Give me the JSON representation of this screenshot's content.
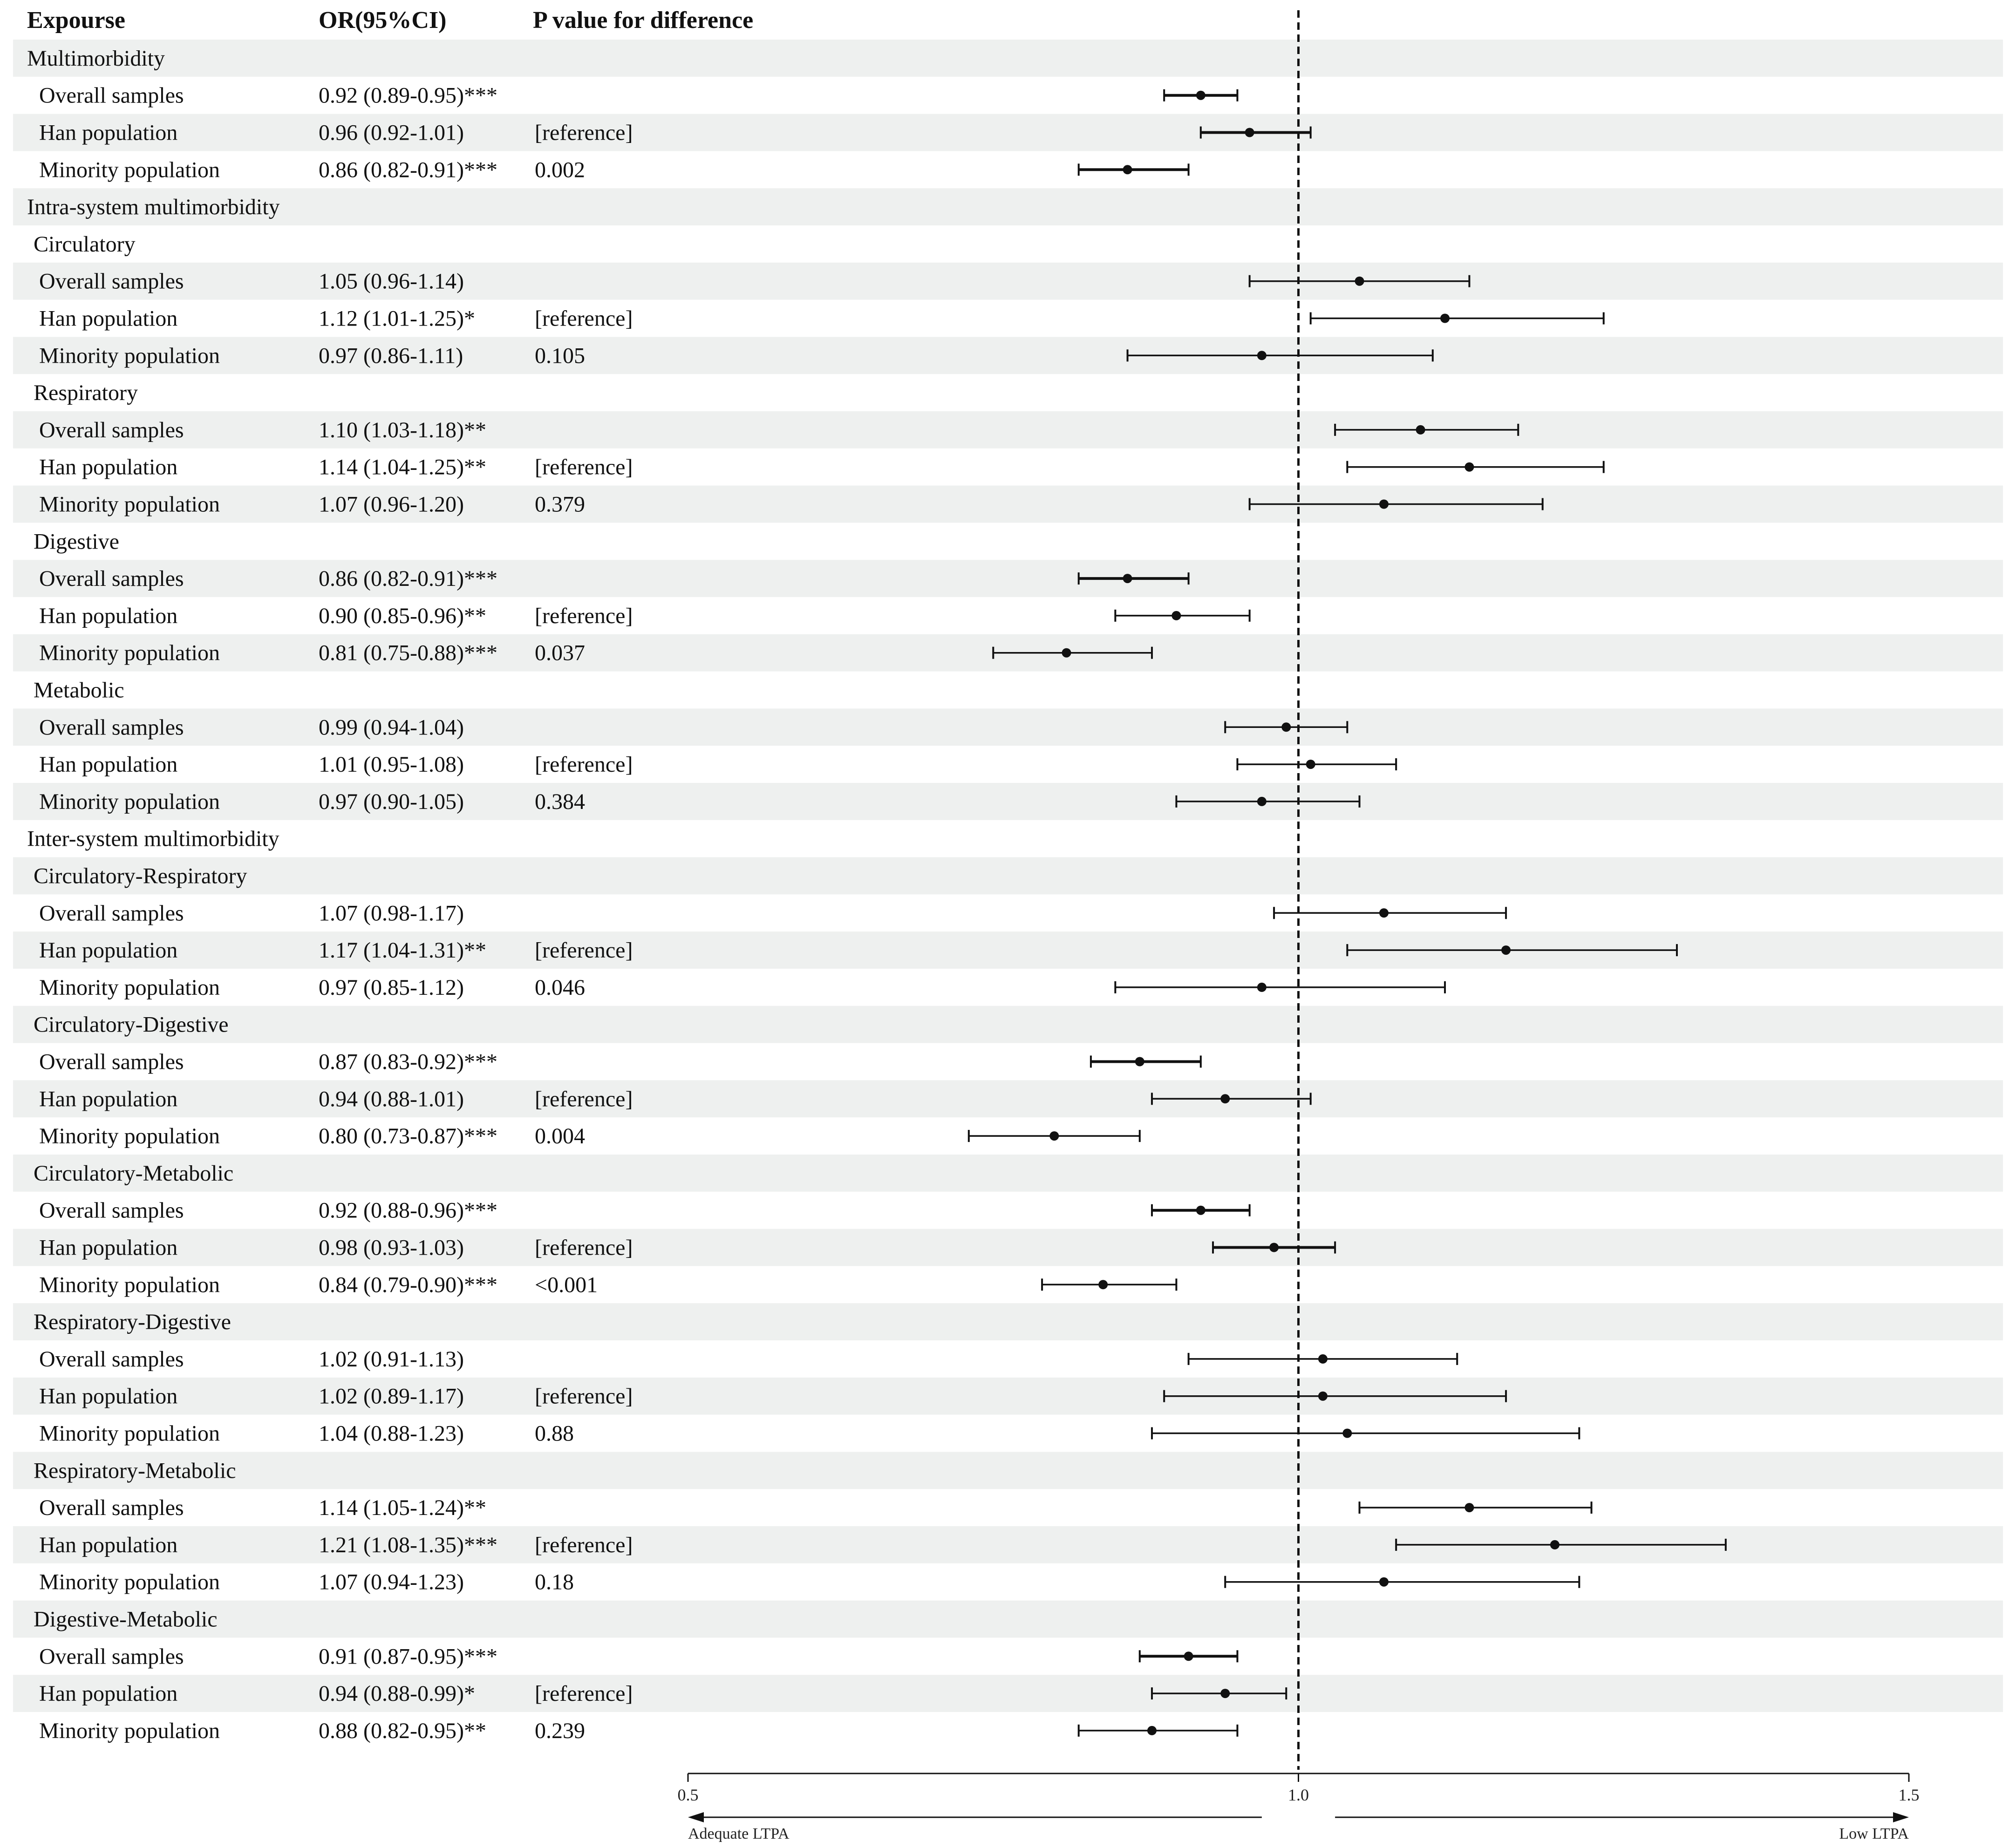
{
  "chart_data": {
    "type": "forest",
    "headers": {
      "exposure": "Expourse",
      "or": "OR(95%CI)",
      "p": "P value for difference"
    },
    "reference_line": 1.0,
    "xlim": [
      0.5,
      1.5
    ],
    "xticks": [
      "0.5",
      "1.0",
      "1.5"
    ],
    "direction_labels": {
      "left": "Adequate LTPA",
      "right": "Low LTPA"
    },
    "rows": [
      {
        "label": "Multimorbidity",
        "type": "section"
      },
      {
        "label": "Overall samples",
        "type": "data",
        "or_text": "0.92 (0.89-0.95)***",
        "p": "",
        "est": 0.92,
        "lo": 0.89,
        "hi": 0.95
      },
      {
        "label": "Han population",
        "type": "data",
        "or_text": "0.96 (0.92-1.01)",
        "p": "[reference]",
        "est": 0.96,
        "lo": 0.92,
        "hi": 1.01
      },
      {
        "label": "Minority population",
        "type": "data",
        "or_text": "0.86 (0.82-0.91)***",
        "p": "0.002",
        "est": 0.86,
        "lo": 0.82,
        "hi": 0.91
      },
      {
        "label": "Intra-system multimorbidity",
        "type": "section"
      },
      {
        "label": "Circulatory",
        "type": "subsection"
      },
      {
        "label": "Overall samples",
        "type": "data",
        "or_text": "1.05 (0.96-1.14)",
        "p": "",
        "est": 1.05,
        "lo": 0.96,
        "hi": 1.14
      },
      {
        "label": "Han population",
        "type": "data",
        "or_text": "1.12 (1.01-1.25)*",
        "p": "[reference]",
        "est": 1.12,
        "lo": 1.01,
        "hi": 1.25
      },
      {
        "label": "Minority population",
        "type": "data",
        "or_text": "0.97 (0.86-1.11)",
        "p": "0.105",
        "est": 0.97,
        "lo": 0.86,
        "hi": 1.11
      },
      {
        "label": "Respiratory",
        "type": "subsection"
      },
      {
        "label": "Overall samples",
        "type": "data",
        "or_text": "1.10 (1.03-1.18)**",
        "p": "",
        "est": 1.1,
        "lo": 1.03,
        "hi": 1.18
      },
      {
        "label": "Han population",
        "type": "data",
        "or_text": "1.14 (1.04-1.25)**",
        "p": "[reference]",
        "est": 1.14,
        "lo": 1.04,
        "hi": 1.25
      },
      {
        "label": "Minority population",
        "type": "data",
        "or_text": "1.07 (0.96-1.20)",
        "p": "0.379",
        "est": 1.07,
        "lo": 0.96,
        "hi": 1.2
      },
      {
        "label": "Digestive",
        "type": "subsection"
      },
      {
        "label": "Overall samples",
        "type": "data",
        "or_text": "0.86 (0.82-0.91)***",
        "p": "",
        "est": 0.86,
        "lo": 0.82,
        "hi": 0.91
      },
      {
        "label": "Han population",
        "type": "data",
        "or_text": "0.90 (0.85-0.96)**",
        "p": "[reference]",
        "est": 0.9,
        "lo": 0.85,
        "hi": 0.96
      },
      {
        "label": "Minority population",
        "type": "data",
        "or_text": "0.81 (0.75-0.88)***",
        "p": "0.037",
        "est": 0.81,
        "lo": 0.75,
        "hi": 0.88
      },
      {
        "label": "Metabolic",
        "type": "subsection"
      },
      {
        "label": "Overall samples",
        "type": "data",
        "or_text": "0.99 (0.94-1.04)",
        "p": "",
        "est": 0.99,
        "lo": 0.94,
        "hi": 1.04
      },
      {
        "label": "Han population",
        "type": "data",
        "or_text": "1.01 (0.95-1.08)",
        "p": "[reference]",
        "est": 1.01,
        "lo": 0.95,
        "hi": 1.08
      },
      {
        "label": "Minority population",
        "type": "data",
        "or_text": "0.97 (0.90-1.05)",
        "p": "0.384",
        "est": 0.97,
        "lo": 0.9,
        "hi": 1.05
      },
      {
        "label": "Inter-system multimorbidity",
        "type": "section"
      },
      {
        "label": "Circulatory-Respiratory",
        "type": "subsection"
      },
      {
        "label": "Overall samples",
        "type": "data",
        "or_text": "1.07 (0.98-1.17)",
        "p": "",
        "est": 1.07,
        "lo": 0.98,
        "hi": 1.17
      },
      {
        "label": "Han population",
        "type": "data",
        "or_text": "1.17 (1.04-1.31)**",
        "p": "[reference]",
        "est": 1.17,
        "lo": 1.04,
        "hi": 1.31
      },
      {
        "label": "Minority population",
        "type": "data",
        "or_text": "0.97 (0.85-1.12)",
        "p": "0.046",
        "est": 0.97,
        "lo": 0.85,
        "hi": 1.12
      },
      {
        "label": "Circulatory-Digestive",
        "type": "subsection"
      },
      {
        "label": "Overall samples",
        "type": "data",
        "or_text": "0.87 (0.83-0.92)***",
        "p": "",
        "est": 0.87,
        "lo": 0.83,
        "hi": 0.92
      },
      {
        "label": "Han population",
        "type": "data",
        "or_text": "0.94 (0.88-1.01)",
        "p": "[reference]",
        "est": 0.94,
        "lo": 0.88,
        "hi": 1.01
      },
      {
        "label": "Minority population",
        "type": "data",
        "or_text": "0.80 (0.73-0.87)***",
        "p": "0.004",
        "est": 0.8,
        "lo": 0.73,
        "hi": 0.87
      },
      {
        "label": "Circulatory-Metabolic",
        "type": "subsection"
      },
      {
        "label": "Overall samples",
        "type": "data",
        "or_text": "0.92 (0.88-0.96)***",
        "p": "",
        "est": 0.92,
        "lo": 0.88,
        "hi": 0.96
      },
      {
        "label": "Han population",
        "type": "data",
        "or_text": "0.98 (0.93-1.03)",
        "p": "[reference]",
        "est": 0.98,
        "lo": 0.93,
        "hi": 1.03
      },
      {
        "label": "Minority population",
        "type": "data",
        "or_text": "0.84 (0.79-0.90)***",
        "p": "<0.001",
        "est": 0.84,
        "lo": 0.79,
        "hi": 0.9
      },
      {
        "label": "Respiratory-Digestive",
        "type": "subsection"
      },
      {
        "label": "Overall samples",
        "type": "data",
        "or_text": "1.02 (0.91-1.13)",
        "p": "",
        "est": 1.02,
        "lo": 0.91,
        "hi": 1.13
      },
      {
        "label": "Han population",
        "type": "data",
        "or_text": "1.02 (0.89-1.17)",
        "p": "[reference]",
        "est": 1.02,
        "lo": 0.89,
        "hi": 1.17
      },
      {
        "label": "Minority population",
        "type": "data",
        "or_text": "1.04 (0.88-1.23)",
        "p": "0.88",
        "est": 1.04,
        "lo": 0.88,
        "hi": 1.23
      },
      {
        "label": "Respiratory-Metabolic",
        "type": "subsection"
      },
      {
        "label": "Overall samples",
        "type": "data",
        "or_text": "1.14 (1.05-1.24)**",
        "p": "",
        "est": 1.14,
        "lo": 1.05,
        "hi": 1.24
      },
      {
        "label": "Han population",
        "type": "data",
        "or_text": "1.21 (1.08-1.35)***",
        "p": "[reference]",
        "est": 1.21,
        "lo": 1.08,
        "hi": 1.35
      },
      {
        "label": "Minority population",
        "type": "data",
        "or_text": "1.07 (0.94-1.23)",
        "p": "0.18",
        "est": 1.07,
        "lo": 0.94,
        "hi": 1.23
      },
      {
        "label": "Digestive-Metabolic",
        "type": "subsection"
      },
      {
        "label": "Overall samples",
        "type": "data",
        "or_text": "0.91 (0.87-0.95)***",
        "p": "",
        "est": 0.91,
        "lo": 0.87,
        "hi": 0.95
      },
      {
        "label": "Han population",
        "type": "data",
        "or_text": "0.94 (0.88-0.99)*",
        "p": "[reference]",
        "est": 0.94,
        "lo": 0.88,
        "hi": 0.99
      },
      {
        "label": "Minority population",
        "type": "data",
        "or_text": "0.88 (0.82-0.95)**",
        "p": "0.239",
        "est": 0.88,
        "lo": 0.82,
        "hi": 0.95
      }
    ]
  }
}
